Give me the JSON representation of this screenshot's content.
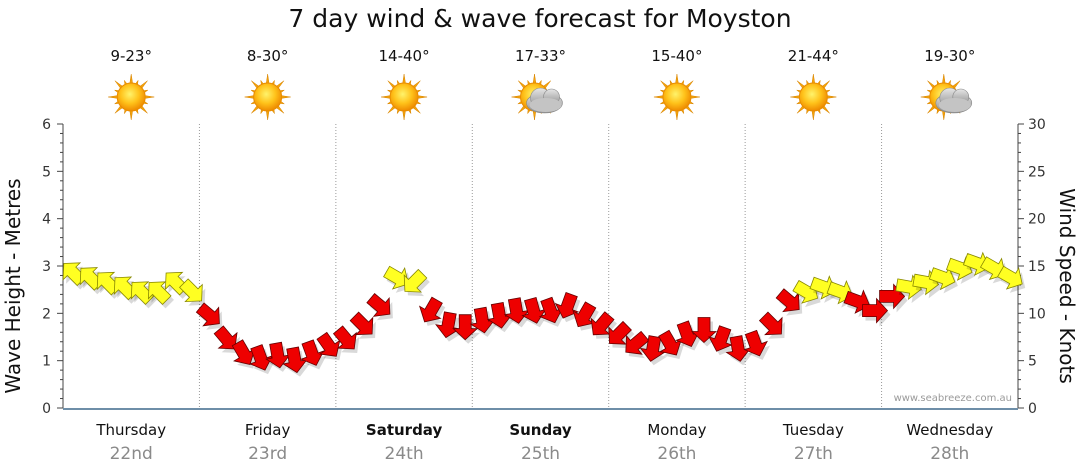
{
  "title": "7 day wind & wave forecast for Moyston",
  "watermark": "www.seabreeze.com.au",
  "chart_data": {
    "type": "line",
    "title": "7 day wind & wave forecast for Moyston",
    "ylabel_left": "Wave Height - Metres",
    "ylabel_right": "Wind Speed - Knots",
    "ylim_left": [
      0,
      6
    ],
    "ylim_right": [
      0,
      30
    ],
    "left_ticks": [
      0,
      1,
      2,
      3,
      4,
      5,
      6
    ],
    "right_ticks": [
      0,
      5,
      10,
      15,
      20,
      25,
      30
    ],
    "grid": true,
    "days": [
      {
        "day": "Thursday",
        "date": "22nd",
        "temp": "9-23°",
        "icon": "sunny-icon",
        "bold": false
      },
      {
        "day": "Friday",
        "date": "23rd",
        "temp": "8-30°",
        "icon": "sunny-icon",
        "bold": false
      },
      {
        "day": "Saturday",
        "date": "24th",
        "temp": "14-40°",
        "icon": "sunny-icon",
        "bold": true
      },
      {
        "day": "Sunday",
        "date": "25th",
        "temp": "17-33°",
        "icon": "partly-cloudy-icon",
        "bold": true
      },
      {
        "day": "Monday",
        "date": "26th",
        "temp": "15-40°",
        "icon": "sunny-icon",
        "bold": false
      },
      {
        "day": "Tuesday",
        "date": "27th",
        "temp": "21-44°",
        "icon": "sunny-icon",
        "bold": false
      },
      {
        "day": "Wednesday",
        "date": "28th",
        "temp": "19-30°",
        "icon": "partly-cloudy-icon",
        "bold": false
      }
    ],
    "series": [
      {
        "name": "Wind Speed",
        "unit": "knots",
        "x_day_offset": [
          0.0,
          0.125,
          0.25,
          0.375,
          0.5,
          0.625,
          0.75,
          0.875,
          1.0,
          1.125,
          1.25,
          1.375,
          1.5,
          1.625,
          1.75,
          1.875,
          2.0,
          2.125,
          2.25,
          2.375,
          2.5,
          2.625,
          2.75,
          2.875,
          3.0,
          3.125,
          3.25,
          3.375,
          3.5,
          3.625,
          3.75,
          3.875,
          4.0,
          4.125,
          4.25,
          4.375,
          4.5,
          4.625,
          4.75,
          4.875,
          5.0,
          5.125,
          5.25,
          5.375,
          5.5,
          5.625,
          5.75,
          5.875,
          6.0,
          6.125,
          6.25,
          6.375,
          6.5,
          6.625,
          6.75,
          6.875
        ],
        "values": [
          14.5,
          14,
          13.5,
          13,
          12.5,
          12.5,
          13.5,
          12.5,
          10,
          7.5,
          6,
          5.5,
          5.8,
          5.3,
          6,
          6.8,
          7.5,
          9,
          11,
          14,
          13.5,
          10.5,
          9,
          8.8,
          9.5,
          10,
          10.5,
          10.5,
          10.5,
          11,
          10,
          9,
          8,
          7,
          6.5,
          7,
          8,
          8.5,
          7.5,
          6.5,
          7,
          9,
          11.5,
          12.5,
          13,
          12.5,
          11.5,
          10.5,
          12,
          13,
          13.5,
          14,
          15,
          15.5,
          15,
          14
        ],
        "directions": [
          225,
          225,
          225,
          225,
          225,
          225,
          225,
          45,
          40,
          50,
          60,
          70,
          80,
          80,
          70,
          55,
          50,
          45,
          40,
          30,
          135,
          120,
          100,
          90,
          80,
          80,
          80,
          75,
          70,
          110,
          120,
          130,
          135,
          140,
          100,
          60,
          70,
          90,
          110,
          80,
          70,
          45,
          40,
          30,
          20,
          20,
          20,
          0,
          0,
          10,
          10,
          20,
          20,
          20,
          30,
          30
        ]
      }
    ]
  }
}
